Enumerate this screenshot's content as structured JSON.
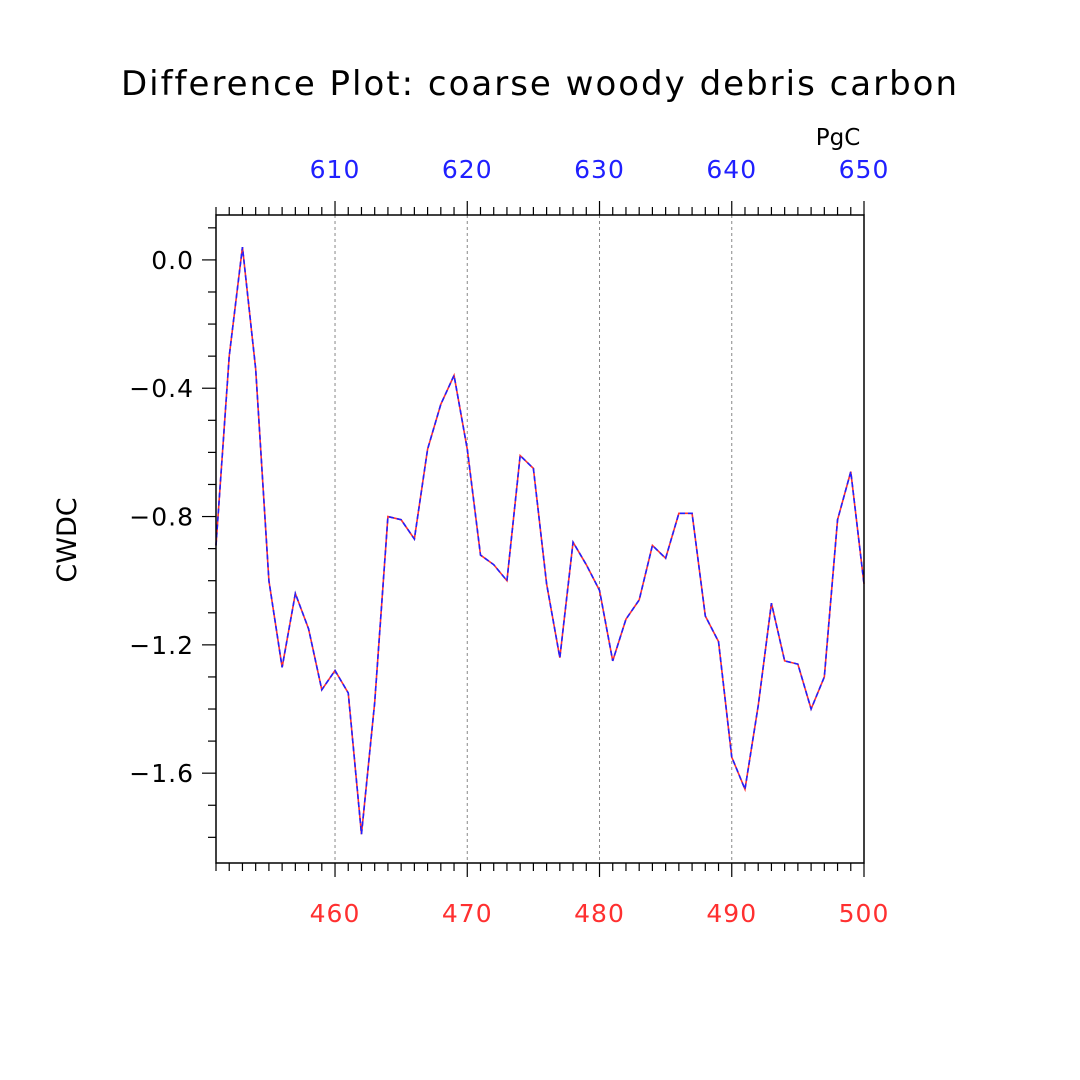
{
  "chart_data": {
    "type": "line",
    "title": "Difference Plot: coarse woody debris carbon",
    "ylabel": "CWDC",
    "top_axis_unit": "PgC",
    "xlim": [
      451,
      500
    ],
    "ylim": [
      -1.88,
      0.14
    ],
    "top_xlim": [
      601,
      650
    ],
    "y_ticks": [
      0.0,
      -0.4,
      -0.8,
      -1.2,
      -1.6
    ],
    "y_tick_labels": [
      "0.0",
      "−0.4",
      "−0.8",
      "−1.2",
      "−1.6"
    ],
    "bottom_x_ticks": [
      460,
      470,
      480,
      490,
      500
    ],
    "bottom_x_tick_labels": [
      "460",
      "470",
      "480",
      "490",
      "500"
    ],
    "top_x_ticks": [
      610,
      620,
      630,
      640,
      650
    ],
    "top_x_tick_labels": [
      "610",
      "620",
      "630",
      "640",
      "650"
    ],
    "grid": "vertical dashed at major x ticks",
    "colors": {
      "series_bottom": "#ff3030",
      "series_top": "#2020ff",
      "bottom_axis_labels": "#ff3030",
      "top_axis_labels": "#2020ff",
      "axes": "#000000",
      "grid": "#888888"
    },
    "series": [
      {
        "axis": "bottom",
        "x": [
          451,
          452,
          453,
          454,
          455,
          456,
          457,
          458,
          459,
          460,
          461,
          462,
          463,
          464,
          465,
          466,
          467,
          468,
          469,
          470,
          471,
          472,
          473,
          474,
          475,
          476,
          477,
          478,
          479,
          480,
          481,
          482,
          483,
          484,
          485,
          486,
          487,
          488,
          489,
          490,
          491,
          492,
          493,
          494,
          495,
          496,
          497,
          498,
          499,
          500
        ],
        "values": [
          -0.89,
          -0.3,
          0.04,
          -0.34,
          -1.0,
          -1.27,
          -1.04,
          -1.15,
          -1.34,
          -1.28,
          -1.35,
          -1.79,
          -1.38,
          -0.8,
          -0.81,
          -0.87,
          -0.59,
          -0.45,
          -0.36,
          -0.59,
          -0.92,
          -0.95,
          -1.0,
          -0.61,
          -0.65,
          -1.01,
          -1.24,
          -0.88,
          -0.95,
          -1.03,
          -1.25,
          -1.12,
          -1.06,
          -0.89,
          -0.93,
          -0.79,
          -0.79,
          -1.11,
          -1.19,
          -1.55,
          -1.65,
          -1.39,
          -1.07,
          -1.25,
          -1.26,
          -1.4,
          -1.3,
          -0.81,
          -0.66,
          -1.01
        ]
      },
      {
        "axis": "top",
        "x": [
          601,
          602,
          603,
          604,
          605,
          606,
          607,
          608,
          609,
          610,
          611,
          612,
          613,
          614,
          615,
          616,
          617,
          618,
          619,
          620,
          621,
          622,
          623,
          624,
          625,
          626,
          627,
          628,
          629,
          630,
          631,
          632,
          633,
          634,
          635,
          636,
          637,
          638,
          639,
          640,
          641,
          642,
          643,
          644,
          645,
          646,
          647,
          648,
          649,
          650
        ],
        "values": [
          -0.89,
          -0.3,
          0.04,
          -0.34,
          -1.0,
          -1.27,
          -1.04,
          -1.15,
          -1.34,
          -1.28,
          -1.35,
          -1.79,
          -1.38,
          -0.8,
          -0.81,
          -0.87,
          -0.59,
          -0.45,
          -0.36,
          -0.59,
          -0.92,
          -0.95,
          -1.0,
          -0.61,
          -0.65,
          -1.01,
          -1.24,
          -0.88,
          -0.95,
          -1.03,
          -1.25,
          -1.12,
          -1.06,
          -0.89,
          -0.93,
          -0.79,
          -0.79,
          -1.11,
          -1.19,
          -1.55,
          -1.65,
          -1.39,
          -1.07,
          -1.25,
          -1.26,
          -1.4,
          -1.3,
          -0.81,
          -0.66,
          -1.01
        ]
      }
    ]
  }
}
